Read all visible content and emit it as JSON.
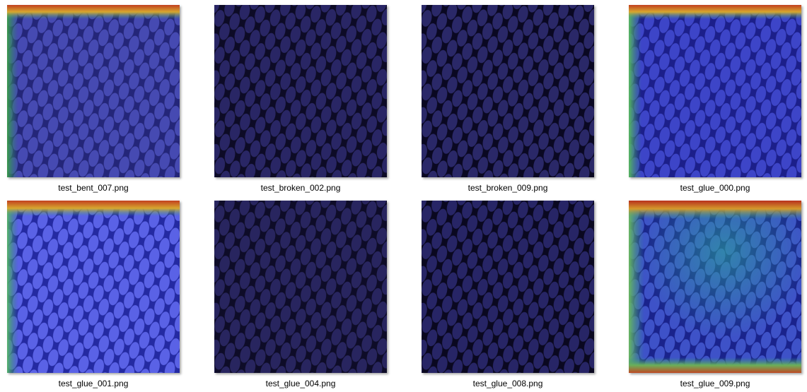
{
  "files": [
    {
      "name": "test_bent_007.png",
      "heatmap": "border-top-left"
    },
    {
      "name": "test_broken_002.png",
      "heatmap": "none"
    },
    {
      "name": "test_broken_009.png",
      "heatmap": "none"
    },
    {
      "name": "test_glue_000.png",
      "heatmap": "border-top-left"
    },
    {
      "name": "test_glue_001.png",
      "heatmap": "border-top-left"
    },
    {
      "name": "test_glue_004.png",
      "heatmap": "none"
    },
    {
      "name": "test_glue_008.png",
      "heatmap": "none"
    },
    {
      "name": "test_glue_009.png",
      "heatmap": "border-full"
    }
  ]
}
